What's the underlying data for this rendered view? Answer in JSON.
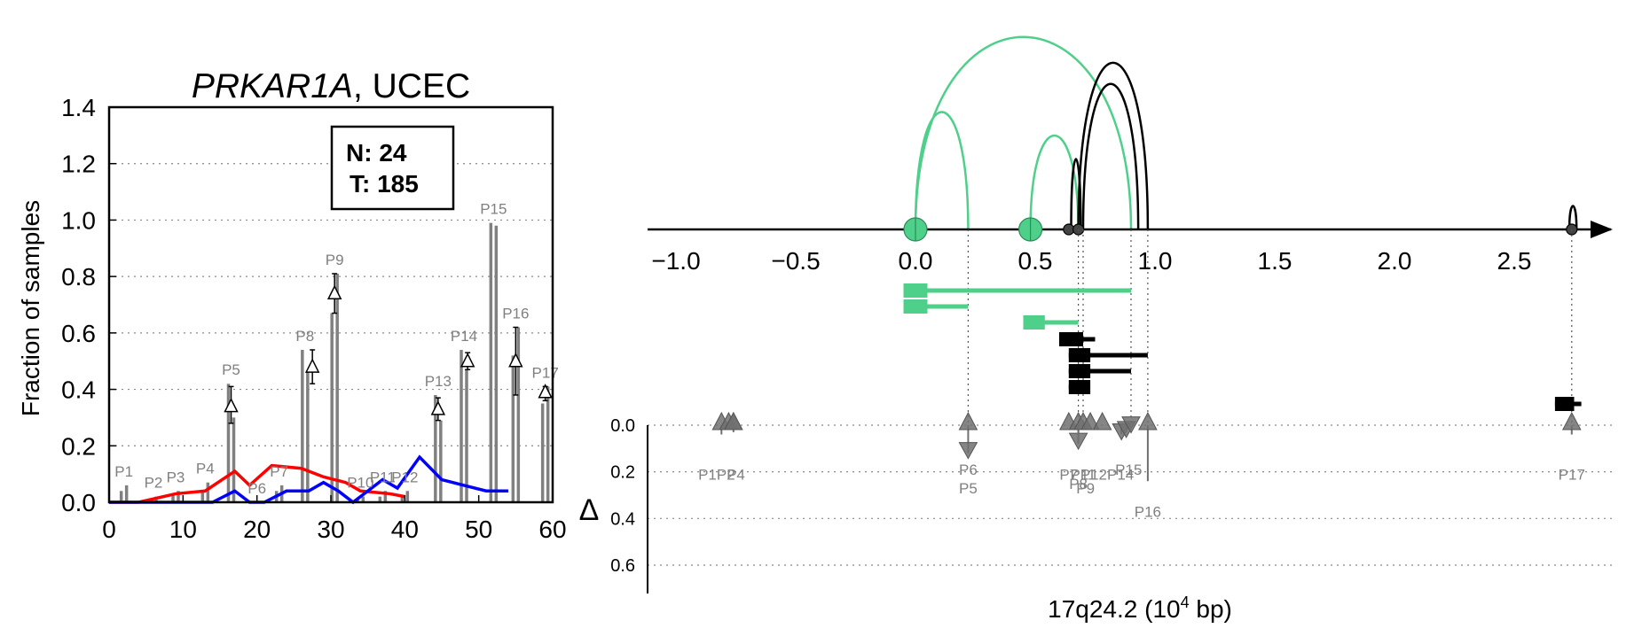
{
  "chart_data": [
    {
      "type": "bar",
      "title_gene": "PRKAR1A",
      "title_rest": ", UCEC",
      "xlabel": "",
      "ylabel": "Fraction of samples",
      "xlim": [
        0,
        60
      ],
      "ylim": [
        0,
        1.4
      ],
      "x_ticks": [
        "0",
        "10",
        "20",
        "30",
        "40",
        "50",
        "60"
      ],
      "y_ticks": [
        "0.0",
        "0.2",
        "0.4",
        "0.6",
        "0.8",
        "1.0",
        "1.2",
        "1.4"
      ],
      "grid": "horizontal dotted",
      "counts": {
        "n": "N: 24",
        "t": "T: 185"
      },
      "bar_color": "#808080",
      "bars": [
        {
          "label": "P1",
          "x": 2,
          "values": [
            0.04,
            0.06
          ]
        },
        {
          "label": "P2",
          "x": 6,
          "values": [
            0.01,
            0.02
          ]
        },
        {
          "label": "P3",
          "x": 9,
          "values": [
            0.03,
            0.04
          ]
        },
        {
          "label": "P4",
          "x": 13,
          "values": [
            0.04,
            0.07
          ]
        },
        {
          "label": "P5",
          "x": 16.5,
          "values": [
            0.42,
            0.3
          ]
        },
        {
          "label": "P6",
          "x": 20,
          "values": [
            0.0,
            0.0
          ]
        },
        {
          "label": "P7",
          "x": 23,
          "values": [
            0.04,
            0.06
          ]
        },
        {
          "label": "P8",
          "x": 26.5,
          "values": [
            0.54,
            0.46
          ]
        },
        {
          "label": "P9",
          "x": 30.5,
          "values": [
            0.67,
            0.81
          ]
        },
        {
          "label": "P10",
          "x": 34,
          "values": [
            0.01,
            0.02
          ]
        },
        {
          "label": "P11",
          "x": 37,
          "values": [
            0.02,
            0.04
          ]
        },
        {
          "label": "P12",
          "x": 40,
          "values": [
            0.02,
            0.04
          ]
        },
        {
          "label": "P13",
          "x": 44.5,
          "values": [
            0.38,
            0.29
          ]
        },
        {
          "label": "P14",
          "x": 48,
          "values": [
            0.54,
            0.47
          ]
        },
        {
          "label": "P15",
          "x": 52,
          "values": [
            0.99,
            0.98
          ]
        },
        {
          "label": "P16",
          "x": 55,
          "values": [
            0.52,
            0.62
          ]
        },
        {
          "label": "P17",
          "x": 59,
          "values": [
            0.35,
            0.41
          ]
        }
      ],
      "deltas": [
        {
          "x": 16.5,
          "y": 0.34,
          "lo": 0.28,
          "hi": 0.41
        },
        {
          "x": 27.5,
          "y": 0.48,
          "lo": 0.42,
          "hi": 0.54
        },
        {
          "x": 30.5,
          "y": 0.74,
          "lo": 0.67,
          "hi": 0.81
        },
        {
          "x": 44.5,
          "y": 0.33,
          "lo": 0.29,
          "hi": 0.37
        },
        {
          "x": 48.5,
          "y": 0.5,
          "lo": 0.47,
          "hi": 0.53
        },
        {
          "x": 55,
          "y": 0.5,
          "lo": 0.38,
          "hi": 0.62
        },
        {
          "x": 59,
          "y": 0.39,
          "lo": 0.36,
          "hi": 0.41
        }
      ],
      "series": [
        {
          "color": "#ff0000",
          "x": [
            0,
            4,
            9,
            13,
            17,
            19,
            22,
            26,
            29,
            32,
            34,
            38,
            40
          ],
          "values": [
            0.0,
            0.0,
            0.03,
            0.04,
            0.11,
            0.06,
            0.13,
            0.12,
            0.09,
            0.07,
            0.04,
            0.03,
            0.02
          ]
        },
        {
          "color": "#0000ff",
          "x": [
            0,
            14,
            17,
            19,
            21,
            24,
            27,
            29,
            31,
            33,
            35,
            37,
            39,
            42,
            45,
            48,
            51,
            54
          ],
          "values": [
            0.0,
            0.0,
            0.04,
            0.0,
            0.0,
            0.04,
            0.04,
            0.07,
            0.04,
            0.0,
            0.04,
            0.08,
            0.05,
            0.16,
            0.08,
            0.06,
            0.04,
            0.04
          ]
        }
      ]
    },
    {
      "type": "scatter",
      "title": "",
      "xlabel": "17q24.2 (10",
      "xlabel_sup": "4",
      "xlabel_end": " bp)",
      "ylabel": "Δ",
      "xlim": [
        -1.15,
        2.85
      ],
      "x_ticks": [
        -1.0,
        -0.5,
        0.0,
        0.5,
        1.0,
        1.5,
        2.0,
        2.5
      ],
      "x_tick_labels": [
        "−1.0",
        "−0.5",
        "0.0",
        "0.5",
        "1.0",
        "1.5",
        "2.0",
        "2.5"
      ],
      "delta_ylim": [
        0,
        0.7
      ],
      "delta_ticks": [
        "0.0",
        "0.2",
        "0.4",
        "0.6"
      ],
      "colors": {
        "green": "#4fd08a",
        "black": "#000000",
        "marker": "#707070"
      },
      "arcs": [
        {
          "color": "green",
          "x1": 0.0,
          "x2": 0.9,
          "height": 0.82
        },
        {
          "color": "green",
          "x1": 0.0,
          "x2": 0.22,
          "height": 0.5
        },
        {
          "color": "green",
          "x1": 0.48,
          "x2": 0.68,
          "height": 0.4
        },
        {
          "color": "black",
          "x1": 0.65,
          "x2": 0.69,
          "height": 0.3
        },
        {
          "color": "black",
          "x1": 0.68,
          "x2": 0.97,
          "height": 0.71
        },
        {
          "color": "black",
          "x1": 0.7,
          "x2": 0.93,
          "height": 0.62
        },
        {
          "color": "black",
          "x1": 2.73,
          "x2": 2.76,
          "height": 0.1
        }
      ],
      "nodes": [
        {
          "x": 0.0,
          "color": "green",
          "size": "large"
        },
        {
          "x": 0.48,
          "color": "green",
          "size": "large"
        },
        {
          "x": 0.64,
          "color": "black",
          "size": "small"
        },
        {
          "x": 0.68,
          "color": "black",
          "size": "small"
        },
        {
          "x": 2.74,
          "color": "black",
          "size": "small"
        }
      ],
      "transcripts": [
        {
          "color": "green",
          "start": -0.05,
          "box_end": 0.05,
          "end": 0.9,
          "row": 0
        },
        {
          "color": "green",
          "start": -0.05,
          "box_end": 0.05,
          "end": 0.22,
          "row": 1
        },
        {
          "color": "green",
          "start": 0.45,
          "box_end": 0.54,
          "end": 0.68,
          "row": 2
        },
        {
          "color": "black",
          "start": 0.6,
          "box_end": 0.7,
          "end": 0.75,
          "row": 3
        },
        {
          "color": "black",
          "start": 0.64,
          "box_end": 0.73,
          "end": 0.97,
          "row": 4
        },
        {
          "color": "black",
          "start": 0.64,
          "box_end": 0.73,
          "end": 0.9,
          "row": 5
        },
        {
          "color": "black",
          "start": 0.64,
          "box_end": 0.73,
          "end": 0.7,
          "row": 6
        },
        {
          "color": "black",
          "start": 2.67,
          "box_end": 2.75,
          "end": 2.78,
          "row": 7
        }
      ],
      "guides": [
        0.22,
        0.68,
        0.7,
        0.9,
        0.97,
        2.74
      ],
      "markers": [
        {
          "label": "P1",
          "x": -0.81,
          "delta": 0.04,
          "dir": "up"
        },
        {
          "label": "P2",
          "x": -0.78,
          "delta": 0.01,
          "dir": "up"
        },
        {
          "label": "P3",
          "x": -0.76,
          "delta": 0.01,
          "dir": "up"
        },
        {
          "label": "P4",
          "x": -0.76,
          "delta": 0.03,
          "dir": "up"
        },
        {
          "label": "P5",
          "x": 0.22,
          "delta": 0.12,
          "dir": "down"
        },
        {
          "label": "P6",
          "x": 0.22,
          "delta": 0.0,
          "dir": "up"
        },
        {
          "label": "P7",
          "x": 0.64,
          "delta": 0.02,
          "dir": "up"
        },
        {
          "label": "P8",
          "x": 0.68,
          "delta": 0.08,
          "dir": "down"
        },
        {
          "label": "P9",
          "x": 0.68,
          "delta": 0.07,
          "dir": "up"
        },
        {
          "label": "P10",
          "x": 0.7,
          "delta": 0.01,
          "dir": "up"
        },
        {
          "label": "P11",
          "x": 0.73,
          "delta": 0.01,
          "dir": "up"
        },
        {
          "label": "P12",
          "x": 0.78,
          "delta": 0.01,
          "dir": "up"
        },
        {
          "label": "P13",
          "x": 0.86,
          "delta": 0.04,
          "dir": "down"
        },
        {
          "label": "P14",
          "x": 0.88,
          "delta": 0.03,
          "dir": "down"
        },
        {
          "label": "P15",
          "x": 0.9,
          "delta": 0.01,
          "dir": "down"
        },
        {
          "label": "P16",
          "x": 0.97,
          "delta": 0.24,
          "dir": "up"
        },
        {
          "label": "P17",
          "x": 2.74,
          "delta": 0.04,
          "dir": "up"
        }
      ],
      "marker_labels": [
        {
          "text": "P1P2",
          "x": -0.83,
          "delta": 0.21
        },
        {
          "text": "P4",
          "x": -0.75,
          "delta": 0.21
        },
        {
          "text": "P6",
          "x": 0.22,
          "delta": 0.19
        },
        {
          "text": "P5",
          "x": 0.22,
          "delta": 0.27
        },
        {
          "text": "P7",
          "x": 0.64,
          "delta": 0.21
        },
        {
          "text": "P11",
          "x": 0.7,
          "delta": 0.21
        },
        {
          "text": "P12P14",
          "x": 0.8,
          "delta": 0.21
        },
        {
          "text": "P15",
          "x": 0.89,
          "delta": 0.19
        },
        {
          "text": "P8",
          "x": 0.68,
          "delta": 0.25
        },
        {
          "text": "P9",
          "x": 0.71,
          "delta": 0.27
        },
        {
          "text": "P16",
          "x": 0.97,
          "delta": 0.37
        },
        {
          "text": "P17",
          "x": 2.74,
          "delta": 0.21
        }
      ]
    }
  ]
}
